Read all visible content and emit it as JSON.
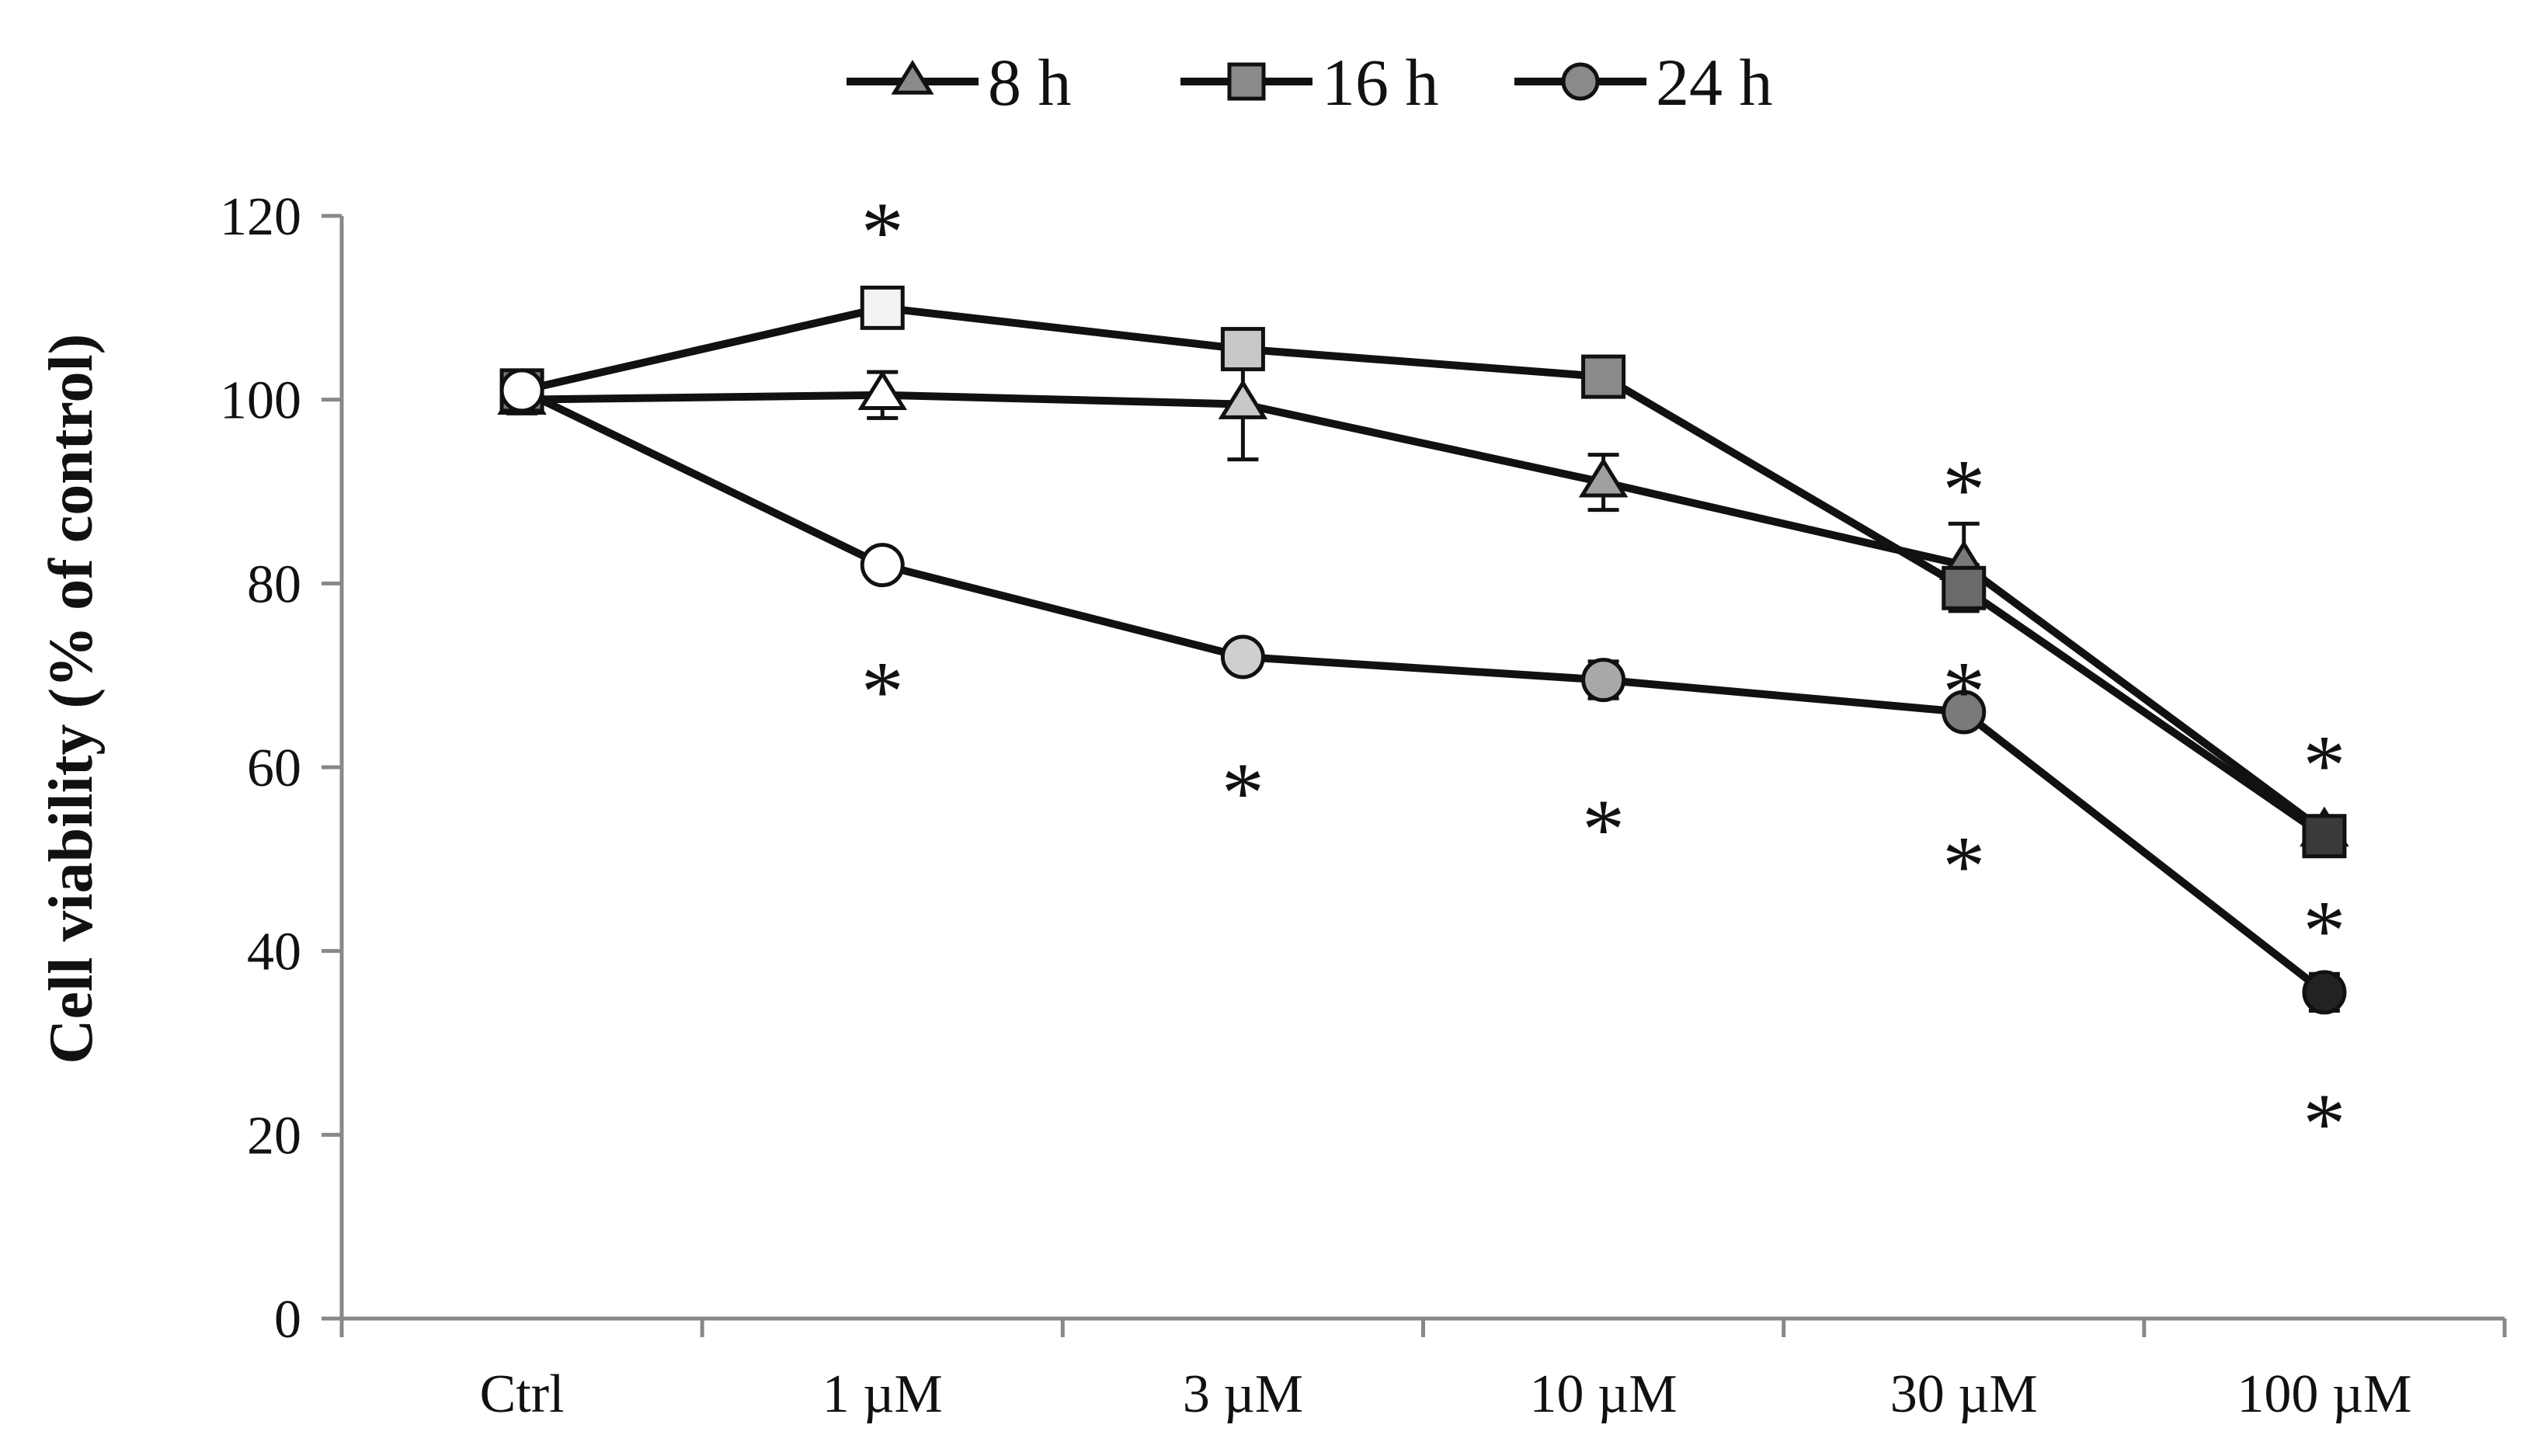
{
  "chart_data": {
    "type": "line",
    "title": "",
    "xlabel": "",
    "ylabel": "Cell viability (% of control)",
    "categories": [
      "Ctrl",
      "1 µM",
      "3 µM",
      "10 µM",
      "30 µM",
      "100 µM"
    ],
    "ylim": [
      0,
      120
    ],
    "yticks": [
      0,
      20,
      40,
      60,
      80,
      100,
      120
    ],
    "grid": false,
    "legend_position": "top-center",
    "series": [
      {
        "name": "8 h",
        "marker": "triangle",
        "values": [
          100,
          100.5,
          99.5,
          91,
          82,
          53
        ],
        "errors": [
          1.5,
          2.5,
          6,
          3,
          4.5,
          1.5
        ],
        "marker_fills": [
          "#4a4a4a",
          "#ffffff",
          "#c8c8c8",
          "#a0a0a0",
          "#7a7a7a",
          "#4a4a4a"
        ]
      },
      {
        "name": "16 h",
        "marker": "square",
        "values": [
          101,
          110,
          105.5,
          102.5,
          79.5,
          52.5
        ],
        "errors": [
          2,
          1,
          1.2,
          1.2,
          2.5,
          1.5
        ],
        "marker_fills": [
          "#7a7a7a",
          "#f2f2f2",
          "#c8c8c8",
          "#8a8a8a",
          "#6a6a6a",
          "#3a3a3a"
        ]
      },
      {
        "name": "24 h",
        "marker": "circle",
        "values": [
          101,
          82,
          72,
          69.5,
          66,
          35.5
        ],
        "errors": [
          1.5,
          1,
          1,
          2,
          1,
          2
        ],
        "marker_fills": [
          "#ffffff",
          "#ffffff",
          "#cfcfcf",
          "#a8a8a8",
          "#7a7a7a",
          "#222222"
        ]
      }
    ],
    "annotations": [
      {
        "text": "*",
        "category": "1 µM",
        "y": 120
      },
      {
        "text": "*",
        "category": "1 µM",
        "y": 70
      },
      {
        "text": "*",
        "category": "3 µM",
        "y": 59
      },
      {
        "text": "*",
        "category": "10 µM",
        "y": 55
      },
      {
        "text": "*",
        "category": "30 µM",
        "y": 92
      },
      {
        "text": "*",
        "category": "30 µM",
        "y": 70
      },
      {
        "text": "*",
        "category": "30 µM",
        "y": 51
      },
      {
        "text": "*",
        "category": "100 µM",
        "y": 62
      },
      {
        "text": "*",
        "category": "100 µM",
        "y": 44
      },
      {
        "text": "*",
        "category": "100 µM",
        "y": 23
      }
    ]
  }
}
